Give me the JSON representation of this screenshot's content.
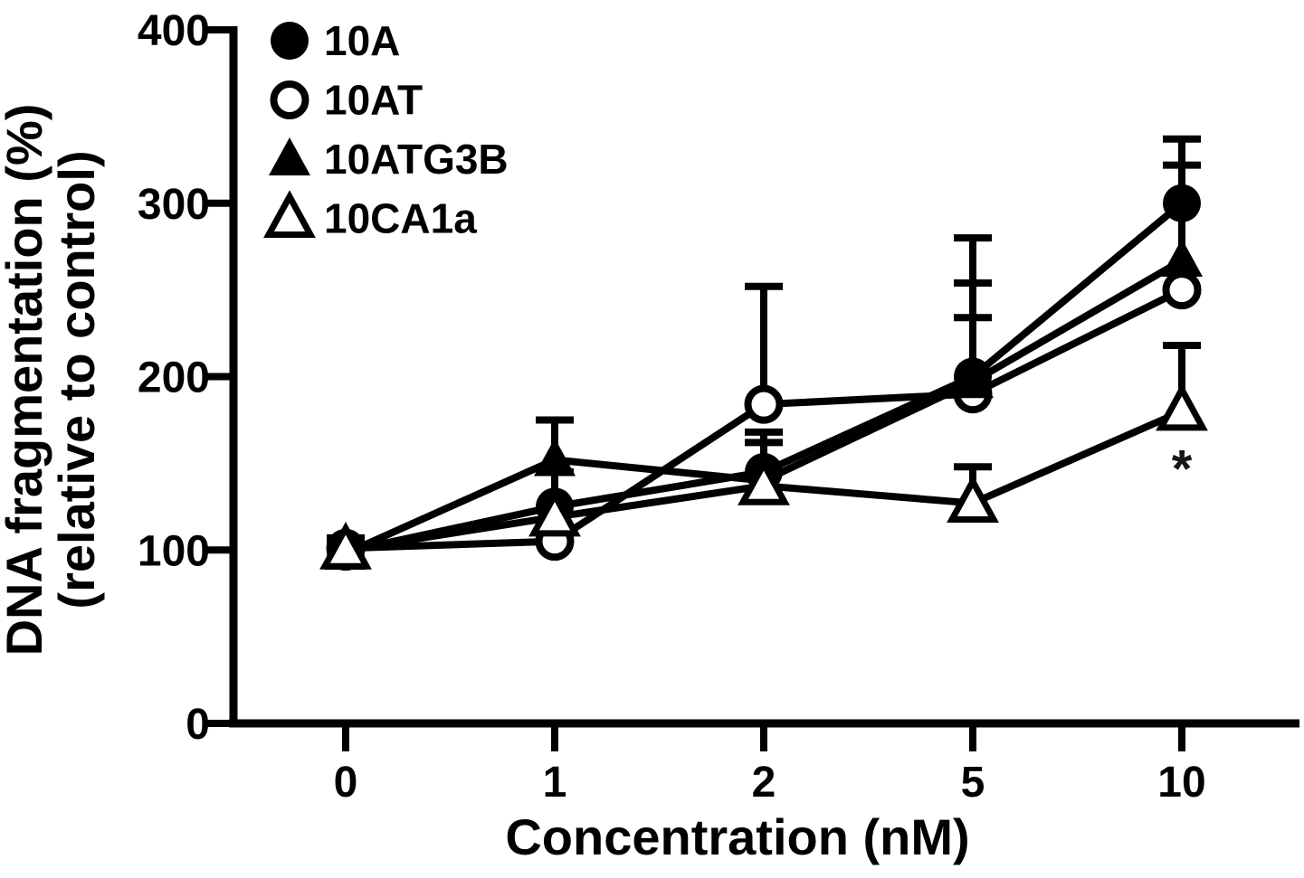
{
  "figure": {
    "background": "#ffffff",
    "foreground": "#000000"
  },
  "chart_data": {
    "type": "line",
    "title": "",
    "xlabel": "Concentration (nM)",
    "ylabel_line1": "DNA fragmentation (%)",
    "ylabel_line2": "(relative to control)",
    "categories": [
      "0",
      "1",
      "2",
      "5",
      "10"
    ],
    "ylim": [
      0,
      400
    ],
    "yticks": [
      0,
      100,
      200,
      300,
      400
    ],
    "grid": false,
    "legend_position": "top-left-inside",
    "series": [
      {
        "name": "10A",
        "marker": "filled-circle",
        "values": [
          99,
          125,
          145,
          200,
          300
        ],
        "err_up": [
          6,
          20,
          23,
          80,
          37
        ],
        "err_down": [
          6,
          0,
          0,
          0,
          0
        ]
      },
      {
        "name": "10AT",
        "marker": "open-circle",
        "values": [
          101,
          105,
          184,
          190,
          250
        ],
        "err_up": [
          6,
          0,
          68,
          44,
          0
        ],
        "err_down": [
          6,
          0,
          0,
          0,
          0
        ]
      },
      {
        "name": "10ATG3B",
        "marker": "filled-triangle",
        "values": [
          98,
          152,
          140,
          197,
          267
        ],
        "err_up": [
          6,
          23,
          22,
          57,
          55
        ],
        "err_down": [
          6,
          0,
          0,
          0,
          0
        ]
      },
      {
        "name": "10CA1a",
        "marker": "open-triangle",
        "values": [
          100,
          119,
          137,
          127,
          180
        ],
        "err_up": [
          6,
          0,
          0,
          21,
          38
        ],
        "err_down": [
          6,
          0,
          0,
          0,
          0
        ]
      }
    ],
    "annotations": [
      {
        "text": "*",
        "x": "10",
        "y": 152,
        "meaning": "significance-marker"
      }
    ]
  }
}
